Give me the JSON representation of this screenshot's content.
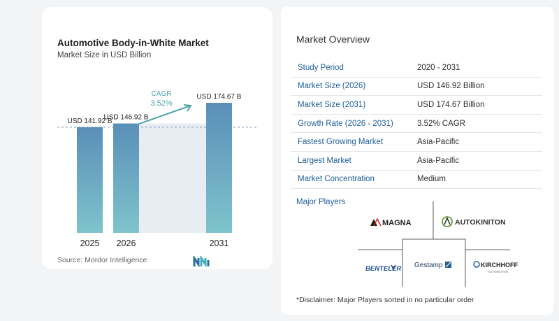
{
  "chart": {
    "title": "Automotive Body-in-White Market",
    "subtitle": "Market Size in USD Billion",
    "source": "Source:  Mordor Intelligence",
    "cagr_label": "CAGR",
    "cagr_value": "3.52%"
  },
  "chart_data": {
    "type": "bar",
    "categories": [
      "2025",
      "2026",
      "2031"
    ],
    "values": [
      141.92,
      146.92,
      174.67
    ],
    "data_labels": [
      "USD 141.92 B",
      "USD 146.92 B",
      "USD 174.67 B"
    ],
    "title": "Automotive Body-in-White Market",
    "subtitle": "Market Size in USD Billion",
    "annotations": [
      "CAGR",
      "3.52%"
    ],
    "grid": false,
    "colors": {
      "bar_top": "#5a8fb8",
      "bar_bottom": "#7fc4cc",
      "accent": "#4fa2a9"
    }
  },
  "overview": {
    "title": "Market Overview",
    "rows": [
      {
        "label": "Study Period",
        "value": "2020 - 2031"
      },
      {
        "label": "Market Size (2026)",
        "value": "USD 146.92 Billion"
      },
      {
        "label": "Market Size (2031)",
        "value": "USD 174.67 Billion"
      },
      {
        "label": "Growth Rate (2026 - 2031)",
        "value": "3.52% CAGR"
      },
      {
        "label": "Fastest Growing Market",
        "value": "Asia-Pacific"
      },
      {
        "label": "Largest Market",
        "value": "Asia-Pacific"
      },
      {
        "label": "Market Concentration",
        "value": "Medium"
      }
    ]
  },
  "players": {
    "title": "Major Players",
    "names": [
      "MAGNA",
      "AUTOKINITON",
      "BENTELER",
      "Gestamp",
      "KIRCHHOFF",
      "AUTOMOTIVE"
    ]
  },
  "disclaimer": "*Disclaimer: Major Players sorted in no particular order"
}
